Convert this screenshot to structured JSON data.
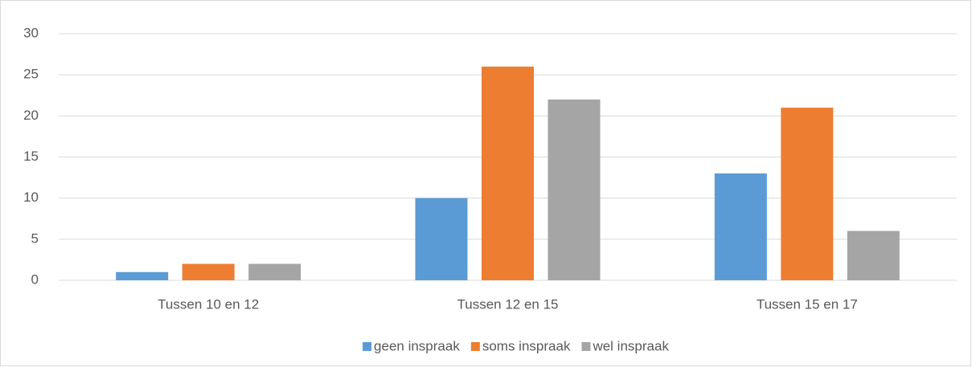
{
  "chart_data": {
    "type": "bar",
    "categories": [
      "Tussen 10 en 12",
      "Tussen 12 en 15",
      "Tussen 15 en 17"
    ],
    "series": [
      {
        "name": "geen inspraak",
        "color": "#5b9bd5",
        "values": [
          1,
          10,
          13
        ]
      },
      {
        "name": "soms inspraak",
        "color": "#ed7d31",
        "values": [
          2,
          26,
          21
        ]
      },
      {
        "name": "wel inspraak",
        "color": "#a5a5a5",
        "values": [
          2,
          22,
          6
        ]
      }
    ],
    "ylim": [
      0,
      30
    ],
    "yticks": [
      0,
      5,
      10,
      15,
      20,
      25,
      30
    ],
    "grid": true,
    "legend": "bottom"
  }
}
